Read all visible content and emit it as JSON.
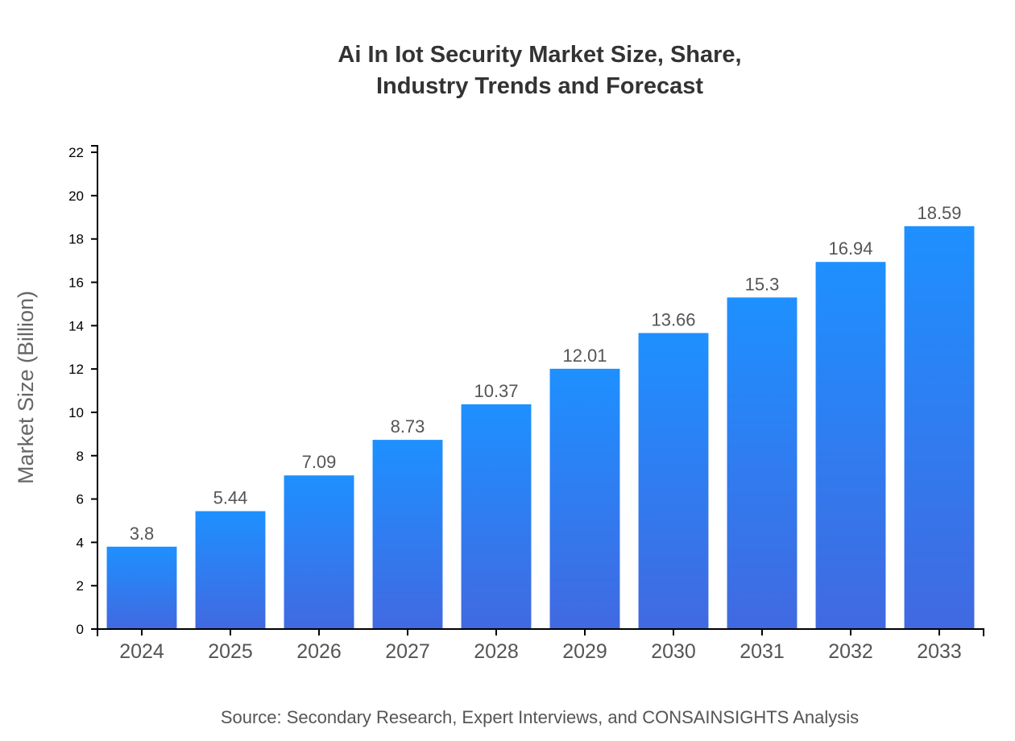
{
  "chart_data": {
    "type": "bar",
    "title": [
      "Ai In Iot Security Market Size, Share,",
      "Industry Trends and Forecast"
    ],
    "xlabel": "",
    "ylabel": "Market Size (Billion)",
    "categories": [
      "2024",
      "2025",
      "2026",
      "2027",
      "2028",
      "2029",
      "2030",
      "2031",
      "2032",
      "2033"
    ],
    "values": [
      3.8,
      5.44,
      7.09,
      8.73,
      10.37,
      12.01,
      13.66,
      15.3,
      16.94,
      18.59
    ],
    "ylim": [
      0,
      22.3
    ],
    "yticks": [
      0,
      2,
      4,
      6,
      8,
      10,
      12,
      14,
      16,
      18,
      20,
      22
    ],
    "grid": false,
    "colors": {
      "bar_top": "#1e90ff",
      "bar_bottom": "#4169e1",
      "axis": "#000000",
      "text": "#555555"
    },
    "source": "Source: Secondary Research, Expert Interviews, and CONSAINSIGHTS Analysis"
  }
}
